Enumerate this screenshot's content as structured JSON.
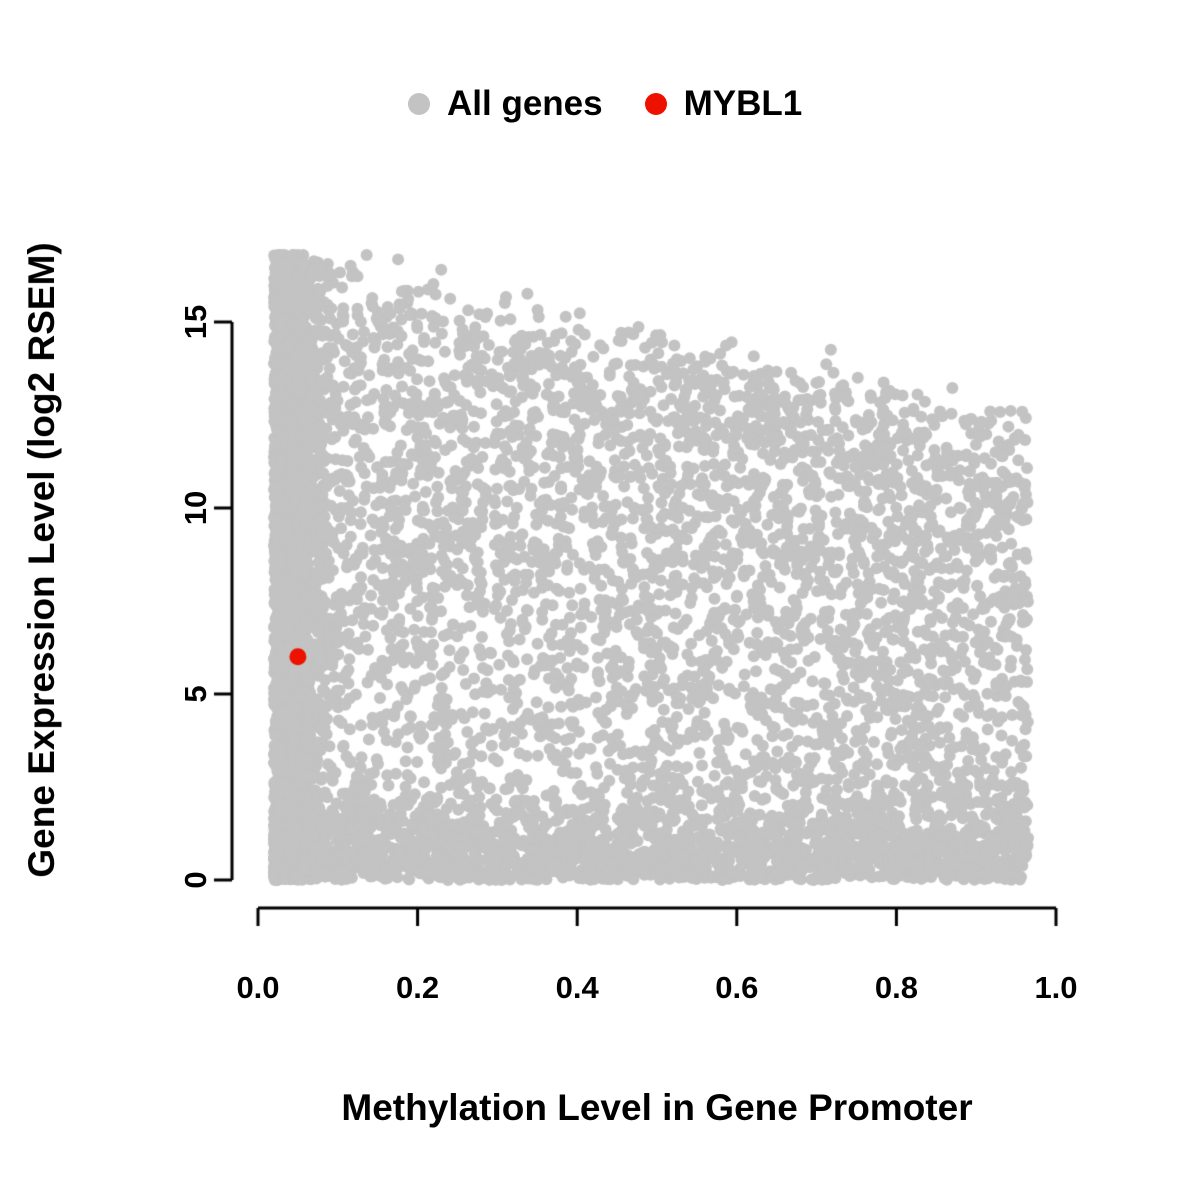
{
  "chart_data": {
    "type": "scatter",
    "title": "",
    "xlabel": "Methylation Level in Gene Promoter",
    "ylabel": "Gene Expression Level (log2 RSEM)",
    "xlim": [
      0,
      1
    ],
    "ylim": [
      0,
      15
    ],
    "grid": false,
    "legend_position": "top-center",
    "x_ticks": [
      {
        "value": 0.0,
        "label": "0.0"
      },
      {
        "value": 0.2,
        "label": "0.2"
      },
      {
        "value": 0.4,
        "label": "0.4"
      },
      {
        "value": 0.6,
        "label": "0.6"
      },
      {
        "value": 0.8,
        "label": "0.8"
      },
      {
        "value": 1.0,
        "label": "1.0"
      }
    ],
    "y_ticks": [
      {
        "value": 0,
        "label": "0"
      },
      {
        "value": 5,
        "label": "5"
      },
      {
        "value": 10,
        "label": "10"
      },
      {
        "value": 15,
        "label": "15"
      }
    ],
    "series": [
      {
        "name": "All genes",
        "color": "#c3c3c3",
        "marker": "circle",
        "marker_radius_px": 6,
        "n_points": 9000,
        "x_range": [
          0.02,
          0.965
        ],
        "y_range": [
          0,
          16.8
        ],
        "description": "Dense cloud covering the plot; very dense column at low methylation (x<0.1) spanning full expression range; upper envelope of expression decreases from ~16.7 at x=0 to ~12 at x=1; dense band near y=0 across all x.",
        "generator": {
          "seed": 1337,
          "left_cluster_fraction": 0.38,
          "left_cluster_sigma": 0.028,
          "bottom_band_fraction": 0.28,
          "bottom_band_sigma": 1.1,
          "envelope_intercept": 16.7,
          "envelope_slope": -4.7,
          "envelope_jitter": 0.4,
          "y_power": 0.8
        }
      },
      {
        "name": "MYBL1",
        "color": "#ee1100",
        "marker": "circle",
        "marker_radius_px": 8.5,
        "points": [
          [
            0.05,
            6.0
          ]
        ]
      }
    ]
  },
  "legend": {
    "items": [
      {
        "label": "All genes",
        "color": "#c3c3c3"
      },
      {
        "label": "MYBL1",
        "color": "#ee1100"
      }
    ]
  }
}
